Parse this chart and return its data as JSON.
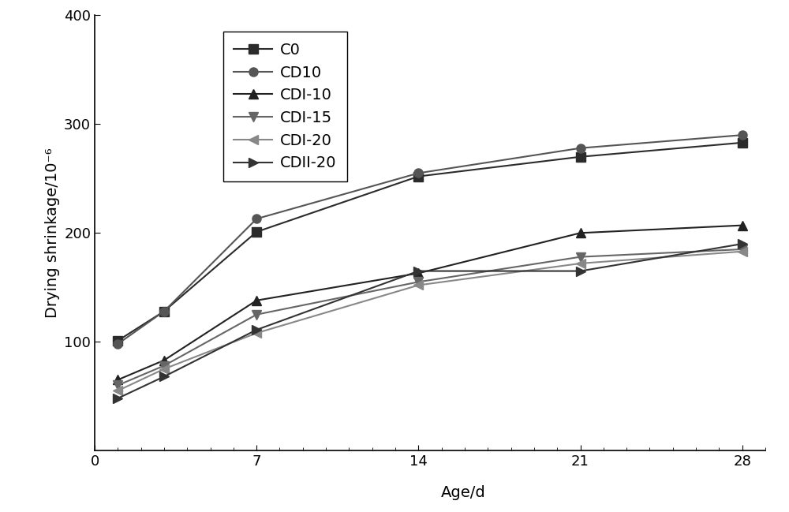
{
  "x": [
    1,
    3,
    7,
    14,
    21,
    28
  ],
  "series": {
    "C0": [
      101,
      128,
      201,
      252,
      270,
      283
    ],
    "CD10": [
      98,
      128,
      213,
      255,
      278,
      290
    ],
    "CDI-10": [
      65,
      83,
      138,
      163,
      200,
      207
    ],
    "CDI-15": [
      60,
      78,
      125,
      155,
      178,
      185
    ],
    "CDI-20": [
      55,
      75,
      108,
      152,
      172,
      183
    ],
    "CDII-20": [
      48,
      68,
      111,
      165,
      165,
      190
    ]
  },
  "markers": {
    "C0": "s",
    "CD10": "o",
    "CDI-10": "^",
    "CDI-15": "v",
    "CDI-20": "<",
    "CDII-20": ">"
  },
  "colors": {
    "C0": "#2b2b2b",
    "CD10": "#555555",
    "CDI-10": "#222222",
    "CDI-15": "#666666",
    "CDI-20": "#888888",
    "CDII-20": "#333333"
  },
  "xlabel": "Age/d",
  "ylabel": "Drying shrinkage/10⁻⁶",
  "xlim": [
    0,
    29
  ],
  "ylim": [
    0,
    400
  ],
  "yticks": [
    100,
    200,
    300,
    400
  ],
  "xticks": [
    0,
    7,
    14,
    21,
    28
  ],
  "background_color": "#ffffff",
  "linewidth": 1.5,
  "markersize": 8,
  "legend_fontsize": 14,
  "axis_fontsize": 14,
  "tick_fontsize": 13
}
